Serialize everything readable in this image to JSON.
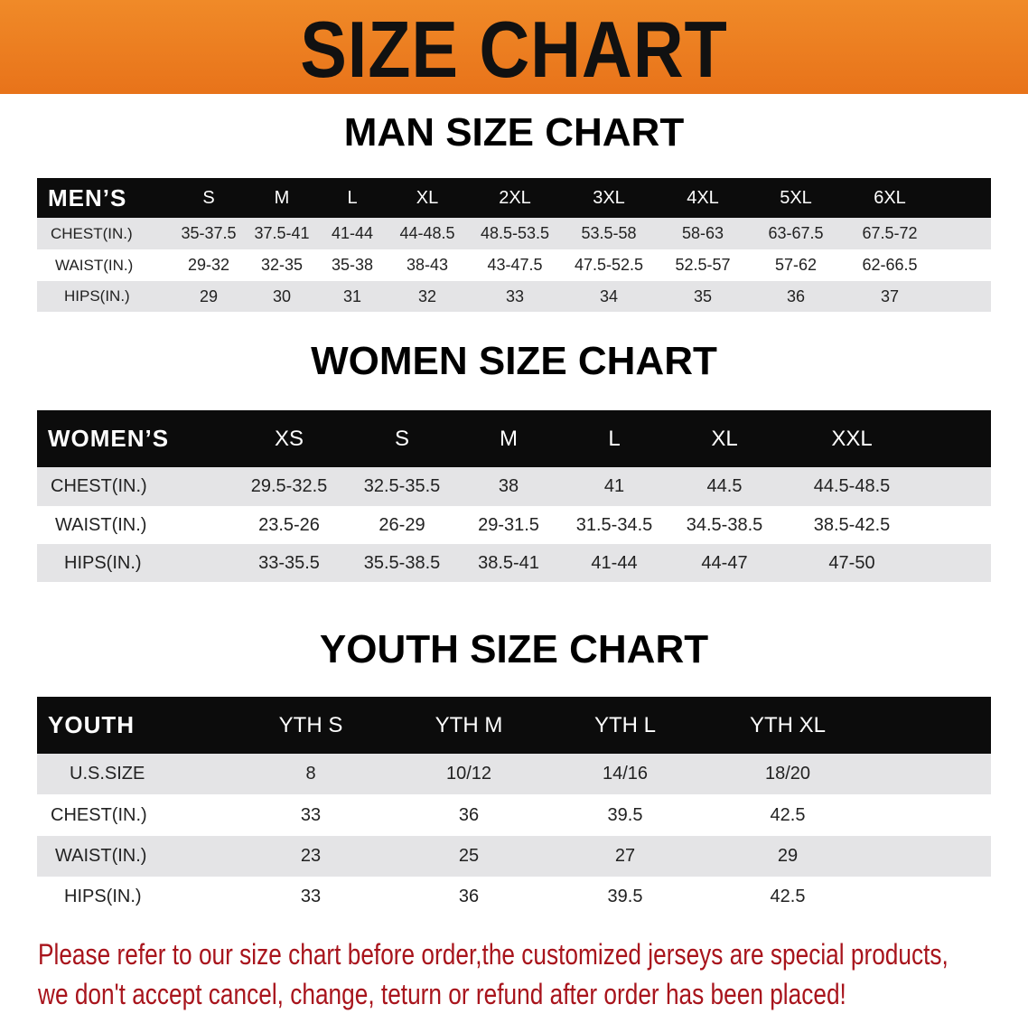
{
  "banner": {
    "title": "SIZE CHART",
    "color": "#e8731a"
  },
  "men": {
    "title": "MAN SIZE CHART",
    "header_label": "MEN’S",
    "sizes": [
      "S",
      "M",
      "L",
      "XL",
      "2XL",
      "3XL",
      "4XL",
      "5XL",
      "6XL"
    ],
    "rows": [
      {
        "label": "CHEST(IN.)",
        "values": [
          "35-37.5",
          "37.5-41",
          "41-44",
          "44-48.5",
          "48.5-53.5",
          "53.5-58",
          "58-63",
          "63-67.5",
          "67.5-72"
        ]
      },
      {
        "label": "WAIST(IN.)",
        "values": [
          "29-32",
          "32-35",
          "35-38",
          "38-43",
          "43-47.5",
          "47.5-52.5",
          "52.5-57",
          "57-62",
          "62-66.5"
        ]
      },
      {
        "label": "HIPS(IN.)",
        "values": [
          "29",
          "30",
          "31",
          "32",
          "33",
          "34",
          "35",
          "36",
          "37"
        ]
      }
    ]
  },
  "women": {
    "title": "WOMEN SIZE CHART",
    "header_label": "WOMEN’S",
    "sizes": [
      "XS",
      "S",
      "M",
      "L",
      "XL",
      "XXL"
    ],
    "rows": [
      {
        "label": "CHEST(IN.)",
        "values": [
          "29.5-32.5",
          "32.5-35.5",
          "38",
          "41",
          "44.5",
          "44.5-48.5"
        ]
      },
      {
        "label": "WAIST(IN.)",
        "values": [
          "23.5-26",
          "26-29",
          "29-31.5",
          "31.5-34.5",
          "34.5-38.5",
          "38.5-42.5"
        ]
      },
      {
        "label": "HIPS(IN.)",
        "values": [
          "33-35.5",
          "35.5-38.5",
          "38.5-41",
          "41-44",
          "44-47",
          "47-50"
        ]
      }
    ]
  },
  "youth": {
    "title": "YOUTH SIZE CHART",
    "header_label": "YOUTH",
    "sizes": [
      "YTH S",
      "YTH M",
      "YTH L",
      "YTH XL"
    ],
    "rows": [
      {
        "label": "U.S.SIZE",
        "values": [
          "8",
          "10/12",
          "14/16",
          "18/20"
        ]
      },
      {
        "label": "CHEST(IN.)",
        "values": [
          "33",
          "36",
          "39.5",
          "42.5"
        ]
      },
      {
        "label": "WAIST(IN.)",
        "values": [
          "23",
          "25",
          "27",
          "29"
        ]
      },
      {
        "label": "HIPS(IN.)",
        "values": [
          "33",
          "36",
          "39.5",
          "42.5"
        ]
      }
    ]
  },
  "note": {
    "line1": "Please refer to our size chart before order,the customized jerseys are special products,",
    "line2": "we don't accept cancel, change, teturn or refund after order has been placed!",
    "color": "#a8141c"
  }
}
